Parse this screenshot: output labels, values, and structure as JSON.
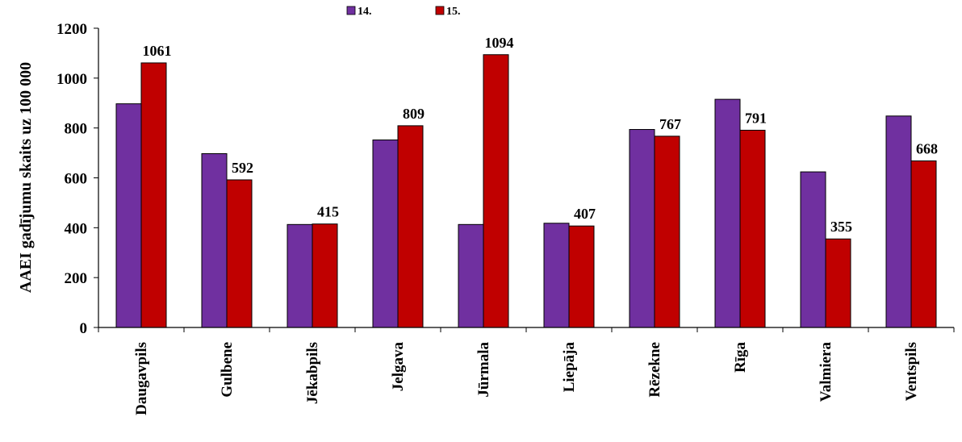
{
  "chart_data": {
    "type": "bar",
    "title": "",
    "xlabel": "",
    "ylabel": "AAEI gadījumu skaits uz 100 000",
    "ylim": [
      0,
      1200
    ],
    "yticks": [
      0,
      200,
      400,
      600,
      800,
      1000,
      1200
    ],
    "grid": false,
    "legend_position": "top",
    "categories": [
      "Daugavpils",
      "Gulbene",
      "Jēkabpils",
      "Jelgava",
      "Jūrmala",
      "Liepāja",
      "Rēzekne",
      "Rīga",
      "Valmiera",
      "Ventspils"
    ],
    "series": [
      {
        "name": "14.",
        "color": "#7030a0",
        "values": [
          897,
          697,
          413,
          752,
          413,
          418,
          794,
          915,
          624,
          848
        ],
        "data_labels": [
          null,
          null,
          null,
          null,
          null,
          null,
          null,
          null,
          null,
          null
        ]
      },
      {
        "name": "15.",
        "color": "#c00000",
        "values": [
          1061,
          592,
          415,
          809,
          1094,
          407,
          767,
          791,
          355,
          668
        ],
        "data_labels": [
          "1061",
          "592",
          "415",
          "809",
          "1094",
          "407",
          "767",
          "791",
          "355",
          "668"
        ]
      }
    ]
  }
}
